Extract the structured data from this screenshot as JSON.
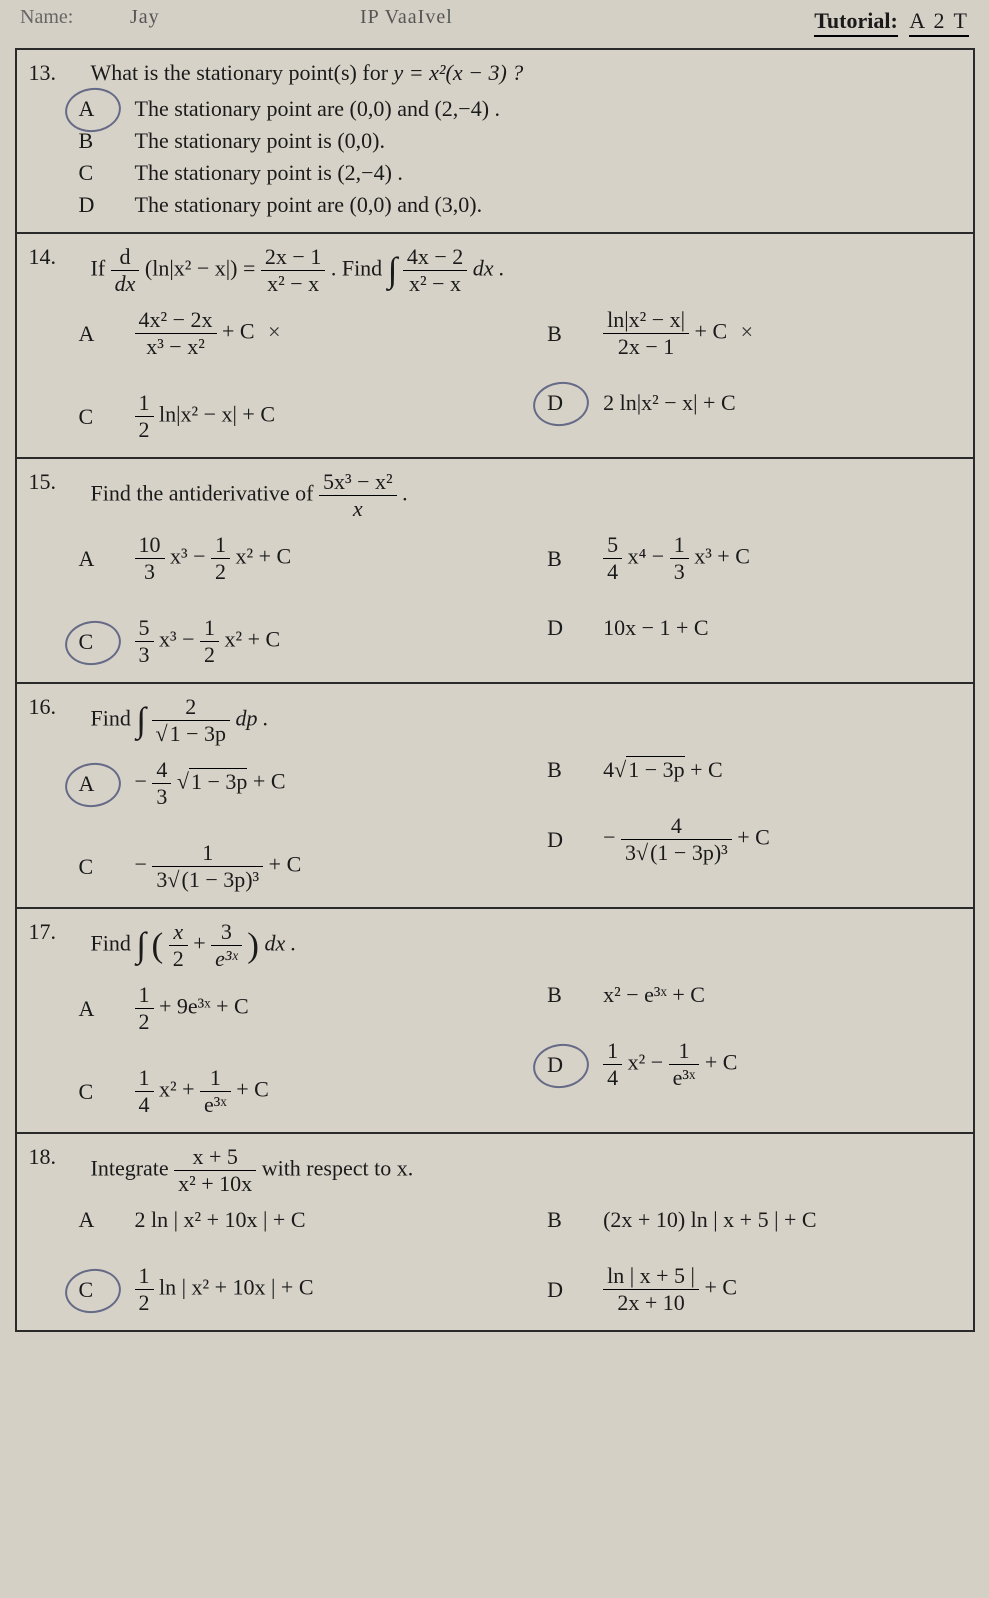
{
  "header": {
    "name_faded": "Name:",
    "center_text": "IP VaaIvel",
    "left_text": "Jay",
    "tutorial_label": "Tutorial:",
    "tutorial_code": "A 2 T"
  },
  "q13": {
    "num": "13.",
    "text_prefix": "What is the stationary point(s) for ",
    "eq": "y = x²(x − 3) ?",
    "A": {
      "label": "A",
      "text": "The stationary point are (0,0) and (2,−4) ."
    },
    "B": {
      "label": "B",
      "text": "The stationary point is (0,0)."
    },
    "C": {
      "label": "C",
      "text": "The stationary point is (2,−4) ."
    },
    "D": {
      "label": "D",
      "text": "The stationary point are (0,0) and (3,0)."
    }
  },
  "q14": {
    "num": "14.",
    "text_prefix": "If ",
    "d_dx": "d",
    "d_dx_den": "dx",
    "ln_expr": "(ln|x² − x|) =",
    "rhs_num": "2x − 1",
    "rhs_den": "x² − x",
    "find": ". Find ",
    "int_num": "4x − 2",
    "int_den": "x² − x",
    "dx": "dx .",
    "A": {
      "label": "A",
      "num": "4x² − 2x",
      "den": "x³ − x²",
      "tail": "+ C"
    },
    "B": {
      "label": "B",
      "num": "ln|x² − x|",
      "den": "2x − 1",
      "tail": "+ C"
    },
    "C": {
      "label": "C",
      "frac_num": "1",
      "frac_den": "2",
      "rest": "ln|x² − x| + C"
    },
    "D": {
      "label": "D",
      "text": "2 ln|x² − x| + C"
    }
  },
  "q15": {
    "num": "15.",
    "text": "Find the antiderivative of ",
    "frac_num": "5x³ − x²",
    "frac_den": "x",
    "dot": ".",
    "A": {
      "label": "A",
      "a_num": "10",
      "a_den": "3",
      "mid": "x³ −",
      "b_num": "1",
      "b_den": "2",
      "tail": "x² + C"
    },
    "B": {
      "label": "B",
      "a_num": "5",
      "a_den": "4",
      "mid": "x⁴ −",
      "b_num": "1",
      "b_den": "3",
      "tail": "x³ + C"
    },
    "C": {
      "label": "C",
      "a_num": "5",
      "a_den": "3",
      "mid": "x³ −",
      "b_num": "1",
      "b_den": "2",
      "tail": "x² + C"
    },
    "D": {
      "label": "D",
      "text": "10x − 1 + C"
    }
  },
  "q16": {
    "num": "16.",
    "text": "Find ",
    "int_num": "2",
    "int_den_sqrt": "1 − 3p",
    "dp": "dp .",
    "A": {
      "label": "A",
      "neg": "−",
      "a_num": "4",
      "a_den": "3",
      "sqrt_arg": "1 − 3p",
      "tail": "+ C"
    },
    "B": {
      "label": "B",
      "coef": "4",
      "sqrt_arg": "1 − 3p",
      "tail": "+ C"
    },
    "C": {
      "label": "C",
      "neg": "−",
      "num": "1",
      "den_coef": "3",
      "den_sqrt": "(1 − 3p)³",
      "tail": "+ C"
    },
    "D": {
      "label": "D",
      "neg": "−",
      "num": "4",
      "den_coef": "3",
      "den_sqrt": "(1 − 3p)³",
      "tail": "+ C"
    }
  },
  "q17": {
    "num": "17.",
    "text": "Find ",
    "lbr": "(",
    "t1_num": "x",
    "t1_den": "2",
    "plus": "+",
    "t2_num": "3",
    "t2_den": "e³ˣ",
    "rbr": ")",
    "dx": "dx .",
    "A": {
      "label": "A",
      "a_num": "1",
      "a_den": "2",
      "tail": "+ 9e³ˣ + C"
    },
    "B": {
      "label": "B",
      "text": "x² − e³ˣ + C"
    },
    "C": {
      "label": "C",
      "a_num": "1",
      "a_den": "4",
      "mid": "x² +",
      "b_num": "1",
      "b_den": "e³ˣ",
      "tail": "+ C"
    },
    "D": {
      "label": "D",
      "a_num": "1",
      "a_den": "4",
      "mid": "x² −",
      "b_num": "1",
      "b_den": "e³ˣ",
      "tail": "+ C"
    }
  },
  "q18": {
    "num": "18.",
    "text": "Integrate ",
    "frac_num": "x + 5",
    "frac_den": "x² + 10x",
    "tail": " with respect to x.",
    "A": {
      "label": "A",
      "text": "2 ln | x² + 10x | + C"
    },
    "B": {
      "label": "B",
      "text": "(2x + 10) ln | x + 5 | + C"
    },
    "C": {
      "label": "C",
      "a_num": "1",
      "a_den": "2",
      "rest": "ln | x² + 10x | + C"
    },
    "D": {
      "label": "D",
      "num": "ln | x + 5 |",
      "den": "2x + 10",
      "tail": "+ C"
    }
  }
}
